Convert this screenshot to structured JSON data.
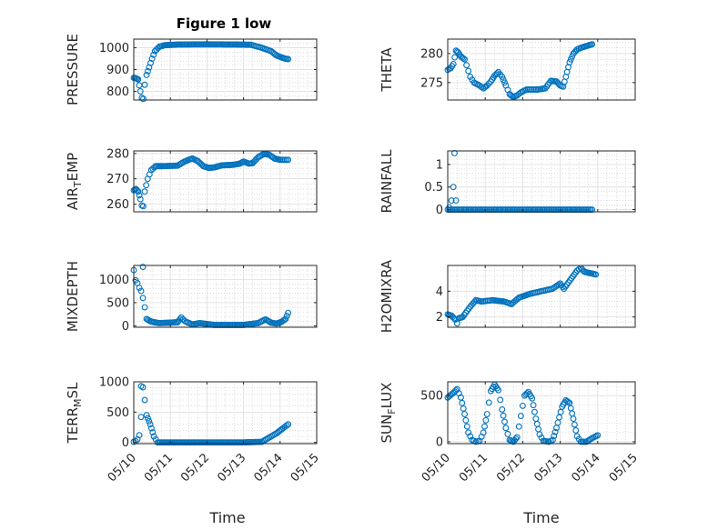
{
  "figure": {
    "title": "Figure 1 low",
    "x_label": "Time",
    "date_ticks": [
      "05/10",
      "05/11",
      "05/12",
      "05/13",
      "05/14",
      "05/15"
    ]
  },
  "colors": {
    "marker": "#0072BD",
    "axis": "#262626",
    "grid": "#dfdfdf",
    "minor_grid": "#c9c9c9",
    "background": "#ffffff"
  },
  "chart_data": [
    {
      "id": "pressure",
      "type": "scatter",
      "title": "Figure 1 low",
      "ylabel": "PRESSURE",
      "ylabel_sub": "",
      "xlim": [
        "2000-05-10",
        "2000-05-15"
      ],
      "ylim": [
        760,
        1040
      ],
      "yticks": [
        800,
        900,
        1000
      ],
      "ytick_labels": [
        "800",
        "900",
        "1000"
      ],
      "xlabel": "",
      "grid": true,
      "minor_grid": true,
      "x_dates": [
        "2000-05-10",
        "2000-05-11",
        "2000-05-12",
        "2000-05-13",
        "2000-05-14"
      ],
      "keypoints": [
        [
          0.0,
          862
        ],
        [
          0.06,
          860
        ],
        [
          0.12,
          855
        ],
        [
          0.18,
          800
        ],
        [
          0.22,
          770
        ],
        [
          0.26,
          765
        ],
        [
          0.3,
          830
        ],
        [
          0.35,
          875
        ],
        [
          0.42,
          910
        ],
        [
          0.5,
          950
        ],
        [
          0.58,
          985
        ],
        [
          0.7,
          1005
        ],
        [
          0.85,
          1012
        ],
        [
          1.2,
          1015
        ],
        [
          2.0,
          1016
        ],
        [
          2.8,
          1015
        ],
        [
          3.2,
          1014
        ],
        [
          3.5,
          1000
        ],
        [
          3.75,
          985
        ],
        [
          3.9,
          965
        ],
        [
          4.05,
          955
        ],
        [
          4.15,
          950
        ],
        [
          4.22,
          948
        ]
      ]
    },
    {
      "id": "theta",
      "type": "scatter",
      "ylabel": "THETA",
      "ylabel_sub": "",
      "xlim": [
        "2000-05-10",
        "2000-05-15"
      ],
      "ylim": [
        272,
        282.5
      ],
      "yticks": [
        275,
        280
      ],
      "ytick_labels": [
        "275",
        "280"
      ],
      "xlabel": "",
      "grid": true,
      "minor_grid": true,
      "keypoints": [
        [
          0.0,
          277.2
        ],
        [
          0.08,
          277.5
        ],
        [
          0.15,
          278.2
        ],
        [
          0.22,
          280.5
        ],
        [
          0.28,
          280.2
        ],
        [
          0.35,
          279.5
        ],
        [
          0.45,
          279.0
        ],
        [
          0.5,
          278.0
        ],
        [
          0.6,
          276.0
        ],
        [
          0.7,
          275.0
        ],
        [
          0.85,
          274.5
        ],
        [
          0.95,
          274.0
        ],
        [
          1.05,
          274.5
        ],
        [
          1.15,
          275.2
        ],
        [
          1.25,
          276.2
        ],
        [
          1.35,
          276.8
        ],
        [
          1.45,
          276.0
        ],
        [
          1.55,
          274.5
        ],
        [
          1.65,
          273.0
        ],
        [
          1.75,
          272.5
        ],
        [
          1.85,
          272.8
        ],
        [
          1.95,
          273.3
        ],
        [
          2.1,
          273.8
        ],
        [
          2.4,
          273.8
        ],
        [
          2.6,
          274.0
        ],
        [
          2.75,
          275.3
        ],
        [
          2.9,
          275.2
        ],
        [
          3.0,
          274.5
        ],
        [
          3.08,
          274.3
        ],
        [
          3.15,
          276.0
        ],
        [
          3.25,
          278.5
        ],
        [
          3.35,
          280.0
        ],
        [
          3.45,
          280.7
        ],
        [
          3.55,
          281.0
        ],
        [
          3.65,
          281.2
        ],
        [
          3.75,
          281.4
        ],
        [
          3.85,
          281.6
        ]
      ]
    },
    {
      "id": "air_temp",
      "type": "scatter",
      "ylabel": "AIR",
      "ylabel_sub": "T",
      "ylabel_rest": "EMP",
      "xlim": [
        "2000-05-10",
        "2000-05-15"
      ],
      "ylim": [
        257,
        281
      ],
      "yticks": [
        260,
        270,
        280
      ],
      "ytick_labels": [
        "260",
        "270",
        "280"
      ],
      "xlabel": "",
      "grid": true,
      "minor_grid": true,
      "keypoints": [
        [
          0.0,
          265.5
        ],
        [
          0.06,
          266.0
        ],
        [
          0.12,
          265.0
        ],
        [
          0.18,
          262.0
        ],
        [
          0.22,
          259.5
        ],
        [
          0.26,
          259.2
        ],
        [
          0.3,
          265.0
        ],
        [
          0.38,
          270.0
        ],
        [
          0.48,
          273.5
        ],
        [
          0.6,
          275.0
        ],
        [
          0.8,
          275.0
        ],
        [
          1.2,
          275.2
        ],
        [
          1.35,
          276.5
        ],
        [
          1.5,
          277.5
        ],
        [
          1.6,
          278.0
        ],
        [
          1.75,
          277.0
        ],
        [
          1.9,
          275.0
        ],
        [
          2.05,
          274.3
        ],
        [
          2.2,
          274.5
        ],
        [
          2.4,
          275.3
        ],
        [
          2.7,
          275.5
        ],
        [
          2.9,
          276.0
        ],
        [
          3.0,
          276.8
        ],
        [
          3.15,
          276.0
        ],
        [
          3.25,
          276.2
        ],
        [
          3.4,
          278.5
        ],
        [
          3.55,
          279.8
        ],
        [
          3.7,
          279.5
        ],
        [
          3.85,
          278.0
        ],
        [
          4.0,
          277.5
        ],
        [
          4.22,
          277.5
        ]
      ]
    },
    {
      "id": "rainfall",
      "type": "scatter",
      "ylabel": "RAINFALL",
      "ylabel_sub": "",
      "xlim": [
        "2000-05-10",
        "2000-05-15"
      ],
      "ylim": [
        -0.05,
        1.3
      ],
      "yticks": [
        0,
        0.5,
        1
      ],
      "ytick_labels": [
        "0",
        "0.5",
        "1"
      ],
      "xlabel": "",
      "grid": true,
      "minor_grid": true,
      "keypoints": [
        [
          0.0,
          0
        ],
        [
          3.85,
          0
        ]
      ],
      "extra_points": [
        [
          0.04,
          0.05
        ],
        [
          0.1,
          0.2
        ],
        [
          0.15,
          0.5
        ],
        [
          0.18,
          1.25
        ],
        [
          0.22,
          0.2
        ]
      ]
    },
    {
      "id": "mixdepth",
      "type": "scatter",
      "ylabel": "MIXDEPTH",
      "ylabel_sub": "",
      "xlim": [
        "2000-05-10",
        "2000-05-15"
      ],
      "ylim": [
        -30,
        1300
      ],
      "yticks": [
        0,
        500,
        1000
      ],
      "ytick_labels": [
        "0",
        "500",
        "1000"
      ],
      "xlabel": "",
      "grid": true,
      "minor_grid": true,
      "keypoints": [
        [
          0.0,
          1200
        ],
        [
          0.05,
          980
        ],
        [
          0.1,
          920
        ],
        [
          0.15,
          820
        ],
        [
          0.2,
          750
        ],
        [
          0.25,
          600
        ],
        [
          0.3,
          400
        ],
        [
          0.35,
          150
        ],
        [
          0.45,
          100
        ],
        [
          0.55,
          80
        ],
        [
          0.7,
          60
        ],
        [
          1.0,
          70
        ],
        [
          1.2,
          80
        ],
        [
          1.3,
          180
        ],
        [
          1.4,
          100
        ],
        [
          1.6,
          30
        ],
        [
          1.8,
          60
        ],
        [
          2.0,
          40
        ],
        [
          2.2,
          20
        ],
        [
          2.6,
          20
        ],
        [
          3.0,
          20
        ],
        [
          3.2,
          40
        ],
        [
          3.4,
          60
        ],
        [
          3.6,
          140
        ],
        [
          3.75,
          70
        ],
        [
          3.9,
          50
        ],
        [
          4.05,
          90
        ],
        [
          4.15,
          150
        ],
        [
          4.22,
          280
        ]
      ],
      "extra_points": [
        [
          0.25,
          1270
        ]
      ]
    },
    {
      "id": "h2omixra",
      "type": "scatter",
      "ylabel": "H2OMIXRA",
      "ylabel_sub": "",
      "xlim": [
        "2000-05-10",
        "2000-05-15"
      ],
      "ylim": [
        1.2,
        6.0
      ],
      "yticks": [
        2,
        4
      ],
      "ytick_labels": [
        "2",
        "4"
      ],
      "xlabel": "",
      "grid": true,
      "minor_grid": true,
      "keypoints": [
        [
          0.0,
          2.2
        ],
        [
          0.1,
          2.1
        ],
        [
          0.2,
          1.8
        ],
        [
          0.25,
          1.5
        ],
        [
          0.3,
          1.9
        ],
        [
          0.4,
          2.0
        ],
        [
          0.6,
          2.8
        ],
        [
          0.75,
          3.3
        ],
        [
          0.9,
          3.2
        ],
        [
          1.2,
          3.3
        ],
        [
          1.5,
          3.2
        ],
        [
          1.7,
          3.0
        ],
        [
          1.9,
          3.5
        ],
        [
          2.2,
          3.8
        ],
        [
          2.5,
          4.0
        ],
        [
          2.8,
          4.2
        ],
        [
          3.0,
          4.6
        ],
        [
          3.1,
          4.2
        ],
        [
          3.3,
          5.0
        ],
        [
          3.45,
          5.6
        ],
        [
          3.55,
          5.8
        ],
        [
          3.65,
          5.5
        ],
        [
          3.8,
          5.4
        ],
        [
          3.95,
          5.3
        ]
      ]
    },
    {
      "id": "terr_msl",
      "type": "scatter",
      "ylabel": "TERR",
      "ylabel_sub": "M",
      "ylabel_rest": "SL",
      "xlim": [
        "2000-05-10",
        "2000-05-15"
      ],
      "ylim": [
        -20,
        1000
      ],
      "yticks": [
        0,
        500,
        1000
      ],
      "ytick_labels": [
        "0",
        "500",
        "1000"
      ],
      "xlabel": "Time",
      "grid": true,
      "minor_grid": true,
      "keypoints": [
        [
          0.0,
          10
        ],
        [
          0.05,
          20
        ],
        [
          0.1,
          50
        ],
        [
          0.15,
          120
        ],
        [
          0.2,
          420
        ],
        [
          0.25,
          910
        ],
        [
          0.3,
          700
        ],
        [
          0.35,
          450
        ],
        [
          0.45,
          300
        ],
        [
          0.55,
          100
        ],
        [
          0.65,
          0
        ],
        [
          1.0,
          0
        ],
        [
          2.0,
          0
        ],
        [
          3.0,
          0
        ],
        [
          3.5,
          10
        ],
        [
          3.7,
          80
        ],
        [
          3.9,
          150
        ],
        [
          4.05,
          220
        ],
        [
          4.22,
          300
        ]
      ],
      "extra_points": [
        [
          0.2,
          930
        ]
      ]
    },
    {
      "id": "sun_flux",
      "type": "scatter",
      "ylabel": "SUN",
      "ylabel_sub": "F",
      "ylabel_rest": "LUX",
      "xlim": [
        "2000-05-10",
        "2000-05-15"
      ],
      "ylim": [
        -20,
        650
      ],
      "yticks": [
        0,
        500
      ],
      "ytick_labels": [
        "0",
        "500"
      ],
      "xlabel": "Time",
      "grid": true,
      "minor_grid": true,
      "keypoints": [
        [
          0.0,
          480
        ],
        [
          0.15,
          530
        ],
        [
          0.25,
          570
        ],
        [
          0.35,
          480
        ],
        [
          0.45,
          300
        ],
        [
          0.55,
          100
        ],
        [
          0.65,
          20
        ],
        [
          0.75,
          0
        ],
        [
          0.85,
          10
        ],
        [
          0.95,
          100
        ],
        [
          1.05,
          300
        ],
        [
          1.15,
          550
        ],
        [
          1.25,
          620
        ],
        [
          1.35,
          560
        ],
        [
          1.45,
          350
        ],
        [
          1.55,
          150
        ],
        [
          1.65,
          20
        ],
        [
          1.75,
          0
        ],
        [
          1.85,
          50
        ],
        [
          1.95,
          280
        ],
        [
          2.05,
          500
        ],
        [
          2.15,
          540
        ],
        [
          2.25,
          470
        ],
        [
          2.35,
          250
        ],
        [
          2.45,
          80
        ],
        [
          2.55,
          10
        ],
        [
          2.7,
          0
        ],
        [
          2.8,
          20
        ],
        [
          2.9,
          150
        ],
        [
          3.05,
          380
        ],
        [
          3.15,
          450
        ],
        [
          3.25,
          420
        ],
        [
          3.35,
          250
        ],
        [
          3.45,
          60
        ],
        [
          3.55,
          0
        ],
        [
          3.7,
          0
        ],
        [
          3.85,
          40
        ],
        [
          4.0,
          70
        ]
      ]
    }
  ]
}
